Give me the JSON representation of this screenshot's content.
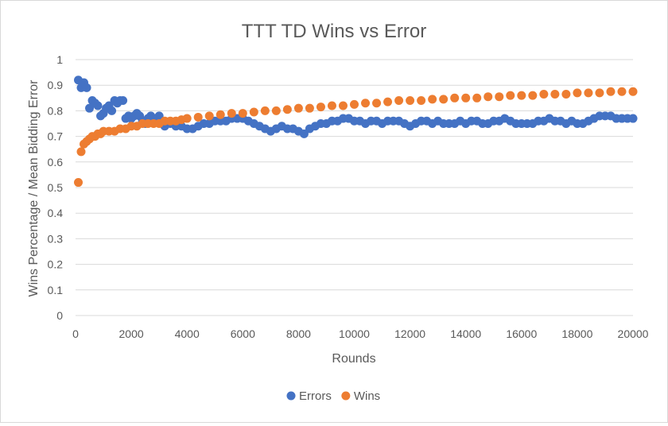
{
  "chart_data": {
    "type": "scatter",
    "title": "TTT TD Wins vs Error",
    "xlabel": "Rounds",
    "ylabel": "Wins Percentage / Mean Bidding Error",
    "xlim": [
      0,
      20000
    ],
    "ylim": [
      0,
      1
    ],
    "x_ticks": [
      0,
      2000,
      4000,
      6000,
      8000,
      10000,
      12000,
      14000,
      16000,
      18000,
      20000
    ],
    "y_ticks": [
      0,
      0.1,
      0.2,
      0.3,
      0.4,
      0.5,
      0.6,
      0.7,
      0.8,
      0.9,
      1
    ],
    "x_tick_labels": [
      "0",
      "2000",
      "4000",
      "6000",
      "8000",
      "10000",
      "12000",
      "14000",
      "16000",
      "18000",
      "20000"
    ],
    "y_tick_labels": [
      "0",
      "0.1",
      "0.2",
      "0.3",
      "0.4",
      "0.5",
      "0.6",
      "0.7",
      "0.8",
      "0.9",
      "1"
    ],
    "grid": true,
    "legend_position": "bottom",
    "series": [
      {
        "name": "Errors",
        "color": "#4472c4",
        "x": [
          100,
          200,
          300,
          400,
          500,
          600,
          700,
          800,
          900,
          1000,
          1100,
          1200,
          1300,
          1400,
          1500,
          1600,
          1700,
          1800,
          1900,
          2000,
          2100,
          2200,
          2300,
          2400,
          2500,
          2600,
          2700,
          2800,
          2900,
          3000,
          3200,
          3400,
          3600,
          3800,
          4000,
          4200,
          4400,
          4600,
          4800,
          5000,
          5200,
          5400,
          5600,
          5800,
          6000,
          6200,
          6400,
          6600,
          6800,
          7000,
          7200,
          7400,
          7600,
          7800,
          8000,
          8200,
          8400,
          8600,
          8800,
          9000,
          9200,
          9400,
          9600,
          9800,
          10000,
          10200,
          10400,
          10600,
          10800,
          11000,
          11200,
          11400,
          11600,
          11800,
          12000,
          12200,
          12400,
          12600,
          12800,
          13000,
          13200,
          13400,
          13600,
          13800,
          14000,
          14200,
          14400,
          14600,
          14800,
          15000,
          15200,
          15400,
          15600,
          15800,
          16000,
          16200,
          16400,
          16600,
          16800,
          17000,
          17200,
          17400,
          17600,
          17800,
          18000,
          18200,
          18400,
          18600,
          18800,
          19000,
          19200,
          19400,
          19600,
          19800,
          20000
        ],
        "y": [
          0.92,
          0.89,
          0.91,
          0.89,
          0.81,
          0.84,
          0.83,
          0.82,
          0.78,
          0.79,
          0.81,
          0.82,
          0.8,
          0.84,
          0.83,
          0.84,
          0.84,
          0.77,
          0.78,
          0.77,
          0.78,
          0.79,
          0.78,
          0.76,
          0.75,
          0.77,
          0.78,
          0.77,
          0.76,
          0.78,
          0.74,
          0.75,
          0.74,
          0.74,
          0.73,
          0.73,
          0.74,
          0.75,
          0.75,
          0.76,
          0.76,
          0.76,
          0.77,
          0.77,
          0.77,
          0.76,
          0.75,
          0.74,
          0.73,
          0.72,
          0.73,
          0.74,
          0.73,
          0.73,
          0.72,
          0.71,
          0.73,
          0.74,
          0.75,
          0.75,
          0.76,
          0.76,
          0.77,
          0.77,
          0.76,
          0.76,
          0.75,
          0.76,
          0.76,
          0.75,
          0.76,
          0.76,
          0.76,
          0.75,
          0.74,
          0.75,
          0.76,
          0.76,
          0.75,
          0.76,
          0.75,
          0.75,
          0.75,
          0.76,
          0.75,
          0.76,
          0.76,
          0.75,
          0.75,
          0.76,
          0.76,
          0.77,
          0.76,
          0.75,
          0.75,
          0.75,
          0.75,
          0.76,
          0.76,
          0.77,
          0.76,
          0.76,
          0.75,
          0.76,
          0.75,
          0.75,
          0.76,
          0.77,
          0.78,
          0.78,
          0.78,
          0.77,
          0.77,
          0.77,
          0.77
        ]
      },
      {
        "name": "Wins",
        "color": "#ed7d31",
        "x": [
          100,
          200,
          300,
          400,
          500,
          600,
          700,
          800,
          900,
          1000,
          1200,
          1400,
          1600,
          1800,
          2000,
          2200,
          2400,
          2600,
          2800,
          3000,
          3200,
          3400,
          3600,
          3800,
          4000,
          4400,
          4800,
          5200,
          5600,
          6000,
          6400,
          6800,
          7200,
          7600,
          8000,
          8400,
          8800,
          9200,
          9600,
          10000,
          10400,
          10800,
          11200,
          11600,
          12000,
          12400,
          12800,
          13200,
          13600,
          14000,
          14400,
          14800,
          15200,
          15600,
          16000,
          16400,
          16800,
          17200,
          17600,
          18000,
          18400,
          18800,
          19200,
          19600,
          20000
        ],
        "y": [
          0.52,
          0.64,
          0.67,
          0.68,
          0.69,
          0.7,
          0.7,
          0.71,
          0.71,
          0.72,
          0.72,
          0.72,
          0.73,
          0.73,
          0.74,
          0.74,
          0.75,
          0.75,
          0.75,
          0.75,
          0.76,
          0.76,
          0.76,
          0.765,
          0.77,
          0.775,
          0.78,
          0.785,
          0.79,
          0.79,
          0.795,
          0.8,
          0.8,
          0.805,
          0.81,
          0.81,
          0.815,
          0.82,
          0.82,
          0.825,
          0.83,
          0.83,
          0.835,
          0.84,
          0.84,
          0.84,
          0.845,
          0.845,
          0.85,
          0.85,
          0.85,
          0.855,
          0.855,
          0.86,
          0.86,
          0.86,
          0.865,
          0.865,
          0.865,
          0.87,
          0.87,
          0.87,
          0.875,
          0.875,
          0.875
        ]
      }
    ]
  }
}
